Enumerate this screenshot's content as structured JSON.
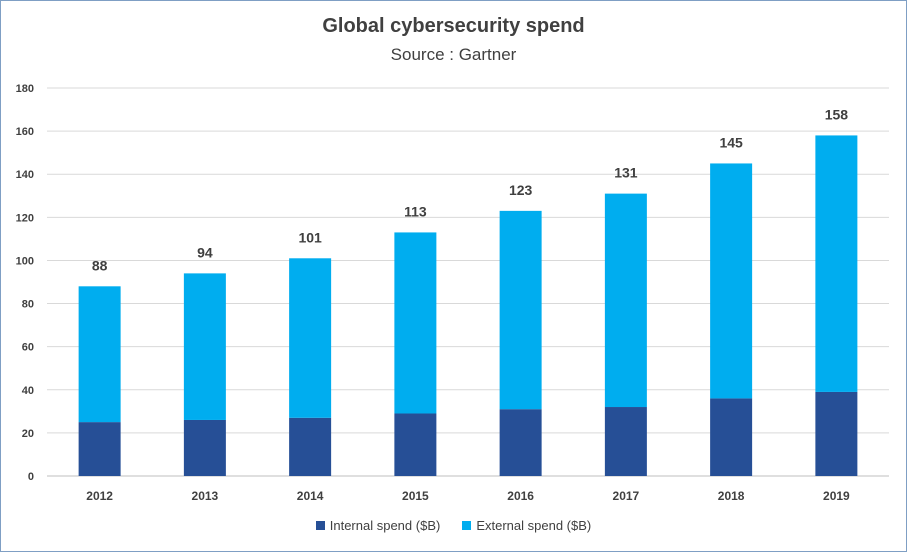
{
  "chart_data": {
    "type": "bar",
    "stacked": true,
    "title": "Global cybersecurity spend",
    "subtitle": "Source : Gartner",
    "categories": [
      "2012",
      "2013",
      "2014",
      "2015",
      "2016",
      "2017",
      "2018",
      "2019"
    ],
    "series": [
      {
        "name": "Internal spend ($B)",
        "color": "#264f96",
        "values": [
          25,
          26,
          27,
          29,
          31,
          32,
          36,
          39
        ]
      },
      {
        "name": "External spend ($B)",
        "color": "#00adef",
        "values": [
          63,
          68,
          74,
          84,
          92,
          99,
          109,
          119
        ]
      }
    ],
    "totals": [
      88,
      94,
      101,
      113,
      123,
      131,
      145,
      158
    ],
    "ylim": [
      0,
      180
    ],
    "yticks": [
      0,
      20,
      40,
      60,
      80,
      100,
      120,
      140,
      160,
      180
    ],
    "grid": true,
    "legend": "bottom-center",
    "gridColor": "#d9d9d9",
    "axisColor": "#bfbfbf"
  }
}
